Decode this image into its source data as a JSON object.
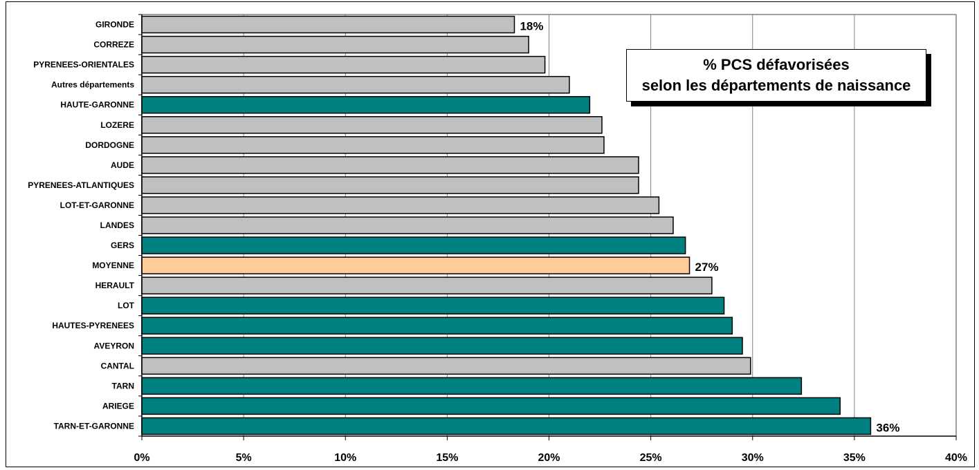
{
  "chart_data": {
    "type": "bar",
    "orientation": "horizontal",
    "title_line1": "% PCS défavorisées",
    "title_line2": "selon les départements de naissance",
    "categories": [
      "GIRONDE",
      "CORREZE",
      "PYRENEES-ORIENTALES",
      "Autres départements",
      "HAUTE-GARONNE",
      "LOZERE",
      "DORDOGNE",
      "AUDE",
      "PYRENEES-ATLANTIQUES",
      "LOT-ET-GARONNE",
      "LANDES",
      "GERS",
      "MOYENNE",
      "HERAULT",
      "LOT",
      "HAUTES-PYRENEES",
      "AVEYRON",
      "CANTAL",
      "TARN",
      "ARIEGE",
      "TARN-ET-GARONNE"
    ],
    "values": [
      18.3,
      19.0,
      19.8,
      21.0,
      22.0,
      22.6,
      22.7,
      24.4,
      24.4,
      25.4,
      26.1,
      26.7,
      26.9,
      28.0,
      28.6,
      29.0,
      29.5,
      29.9,
      32.4,
      34.3,
      35.8
    ],
    "bar_kind": [
      "other",
      "other",
      "other",
      "other",
      "highlight",
      "other",
      "other",
      "other",
      "other",
      "other",
      "other",
      "highlight",
      "average",
      "other",
      "highlight",
      "highlight",
      "highlight",
      "other",
      "highlight",
      "highlight",
      "highlight"
    ],
    "data_labels": [
      {
        "category": "GIRONDE",
        "text": "18%"
      },
      {
        "category": "MOYENNE",
        "text": "27%"
      },
      {
        "category": "TARN-ET-GARONNE",
        "text": "36%"
      }
    ],
    "xticks": [
      0,
      5,
      10,
      15,
      20,
      25,
      30,
      35,
      40
    ],
    "xtick_labels": [
      "0%",
      "5%",
      "10%",
      "15%",
      "20%",
      "25%",
      "30%",
      "35%",
      "40%"
    ],
    "xlim": [
      0,
      40
    ],
    "grid": "vertical",
    "legend": "none",
    "colors": {
      "other": "#c0c0c0",
      "highlight": "#008080",
      "average": "#ffcc99",
      "outline": "#000000",
      "gridline": "#808080"
    }
  }
}
